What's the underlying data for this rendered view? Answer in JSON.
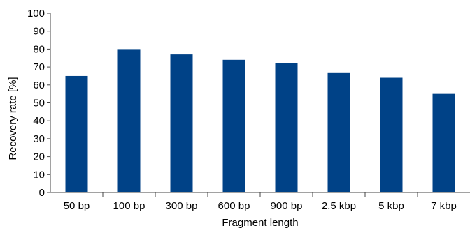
{
  "chart_data": {
    "type": "bar",
    "categories": [
      "50 bp",
      "100 bp",
      "300 bp",
      "600 bp",
      "900 bp",
      "2.5 kbp",
      "5 kbp",
      "7 kbp"
    ],
    "values": [
      65,
      80,
      77,
      74,
      72,
      67,
      64,
      55
    ],
    "xlabel": "Fragment length",
    "ylabel": "Recovery rate [%]",
    "ylim": [
      0,
      100
    ],
    "yticks": [
      0,
      10,
      20,
      30,
      40,
      50,
      60,
      70,
      80,
      90,
      100
    ],
    "grid": false,
    "bar_color": "#004287"
  }
}
